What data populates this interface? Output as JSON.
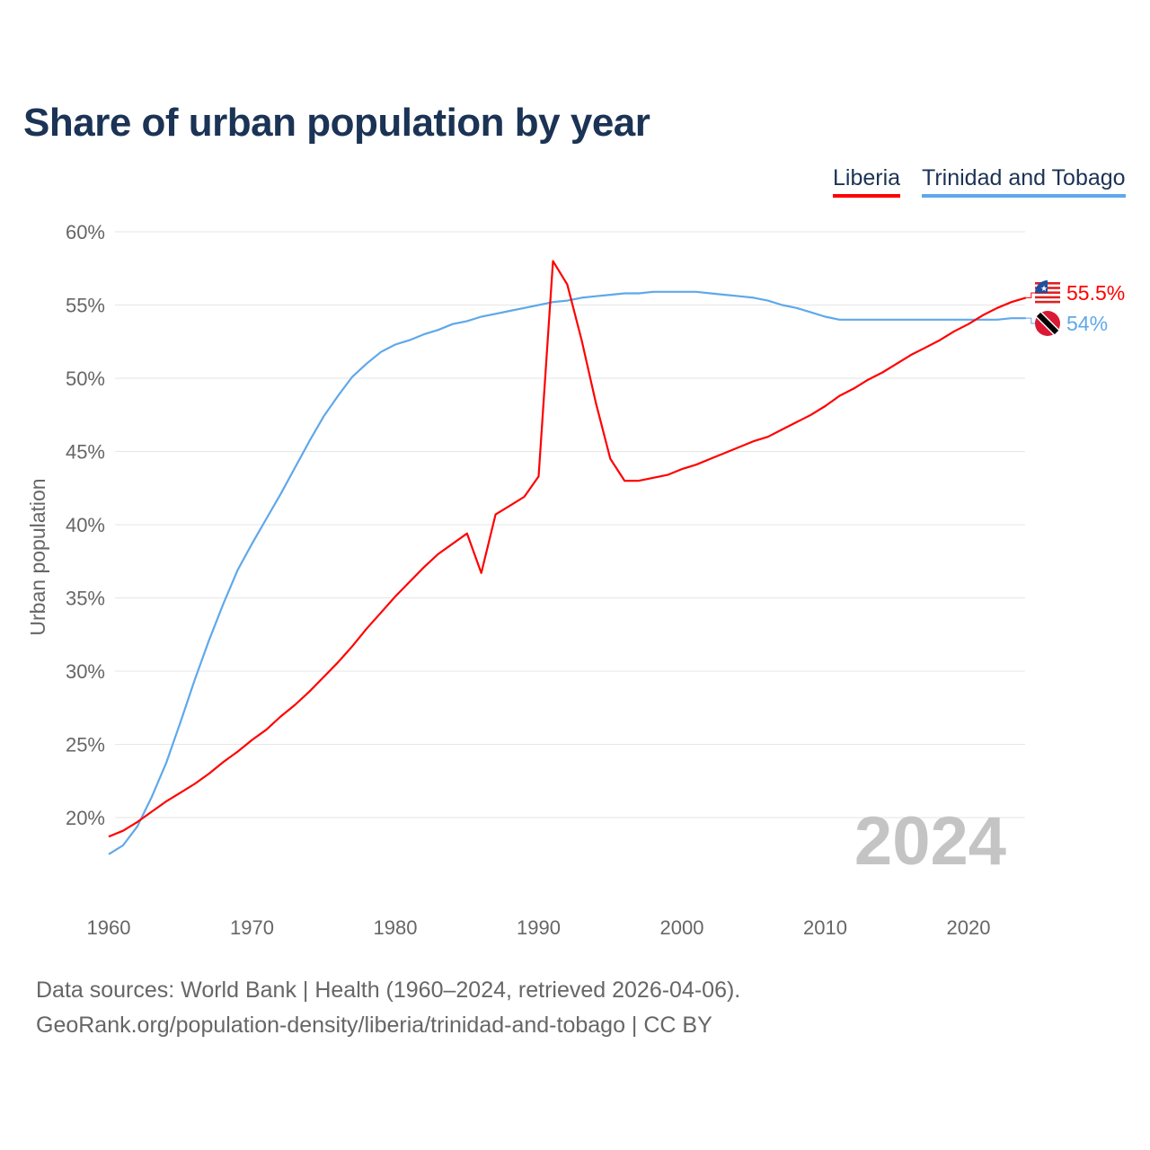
{
  "chart_data": {
    "type": "line",
    "title": "Share of urban population by year",
    "xlabel": "",
    "ylabel": "Urban population",
    "ylim": [
      15,
      60
    ],
    "xlim": [
      1960,
      2024
    ],
    "yticks": [
      "20%",
      "25%",
      "30%",
      "35%",
      "40%",
      "45%",
      "50%",
      "55%",
      "60%"
    ],
    "ytick_values": [
      20,
      25,
      30,
      35,
      40,
      45,
      50,
      55,
      60
    ],
    "xticks": [
      "1960",
      "1970",
      "1980",
      "1990",
      "2000",
      "2010",
      "2020"
    ],
    "xtick_values": [
      1960,
      1970,
      1980,
      1990,
      2000,
      2010,
      2020
    ],
    "grid": true,
    "legend_position": "top-right",
    "year_watermark": "2024",
    "x": [
      1960,
      1961,
      1962,
      1963,
      1964,
      1965,
      1966,
      1967,
      1968,
      1969,
      1970,
      1971,
      1972,
      1973,
      1974,
      1975,
      1976,
      1977,
      1978,
      1979,
      1980,
      1981,
      1982,
      1983,
      1984,
      1985,
      1986,
      1987,
      1988,
      1989,
      1990,
      1991,
      1992,
      1993,
      1994,
      1995,
      1996,
      1997,
      1998,
      1999,
      2000,
      2001,
      2002,
      2003,
      2004,
      2005,
      2006,
      2007,
      2008,
      2009,
      2010,
      2011,
      2012,
      2013,
      2014,
      2015,
      2016,
      2017,
      2018,
      2019,
      2020,
      2021,
      2022,
      2023,
      2024
    ],
    "series": [
      {
        "name": "Liberia",
        "color": "#ff0000",
        "end_label": "55.5%",
        "flag": "liberia-flag",
        "values": [
          18.7,
          19.1,
          19.7,
          20.4,
          21.1,
          21.7,
          22.3,
          23.0,
          23.8,
          24.5,
          25.3,
          26.0,
          26.9,
          27.7,
          28.6,
          29.6,
          30.6,
          31.7,
          32.9,
          34.0,
          35.1,
          36.1,
          37.1,
          38.0,
          38.7,
          39.4,
          36.7,
          40.7,
          41.3,
          41.9,
          43.3,
          58.0,
          56.4,
          52.6,
          48.3,
          44.5,
          43.0,
          43.0,
          43.2,
          43.4,
          43.8,
          44.1,
          44.5,
          44.9,
          45.3,
          45.7,
          46.0,
          46.5,
          47.0,
          47.5,
          48.1,
          48.8,
          49.3,
          49.9,
          50.4,
          51.0,
          51.6,
          52.1,
          52.6,
          53.2,
          53.7,
          54.3,
          54.8,
          55.2,
          55.5
        ]
      },
      {
        "name": "Trinidad and Tobago",
        "color": "#5fa8ea",
        "end_label": "54%",
        "flag": "trinidad-and-tobago-flag",
        "values": [
          17.5,
          18.1,
          19.4,
          21.4,
          23.7,
          26.5,
          29.4,
          32.1,
          34.6,
          36.9,
          38.7,
          40.4,
          42.1,
          43.9,
          45.7,
          47.4,
          48.8,
          50.1,
          51.0,
          51.8,
          52.3,
          52.6,
          53.0,
          53.3,
          53.7,
          53.9,
          54.2,
          54.4,
          54.6,
          54.8,
          55.0,
          55.2,
          55.3,
          55.5,
          55.6,
          55.7,
          55.8,
          55.8,
          55.9,
          55.9,
          55.9,
          55.9,
          55.8,
          55.7,
          55.6,
          55.5,
          55.3,
          55.0,
          54.8,
          54.5,
          54.2,
          54.0,
          54.0,
          54.0,
          54.0,
          54.0,
          54.0,
          54.0,
          54.0,
          54.0,
          54.0,
          54.0,
          54.0,
          54.1,
          54.1
        ]
      }
    ]
  },
  "footer": {
    "sources": "Data sources: World Bank | Health (1960–2024, retrieved 2026-04-06).",
    "credit": "GeoRank.org/population-density/liberia/trinidad-and-tobago | CC BY"
  }
}
